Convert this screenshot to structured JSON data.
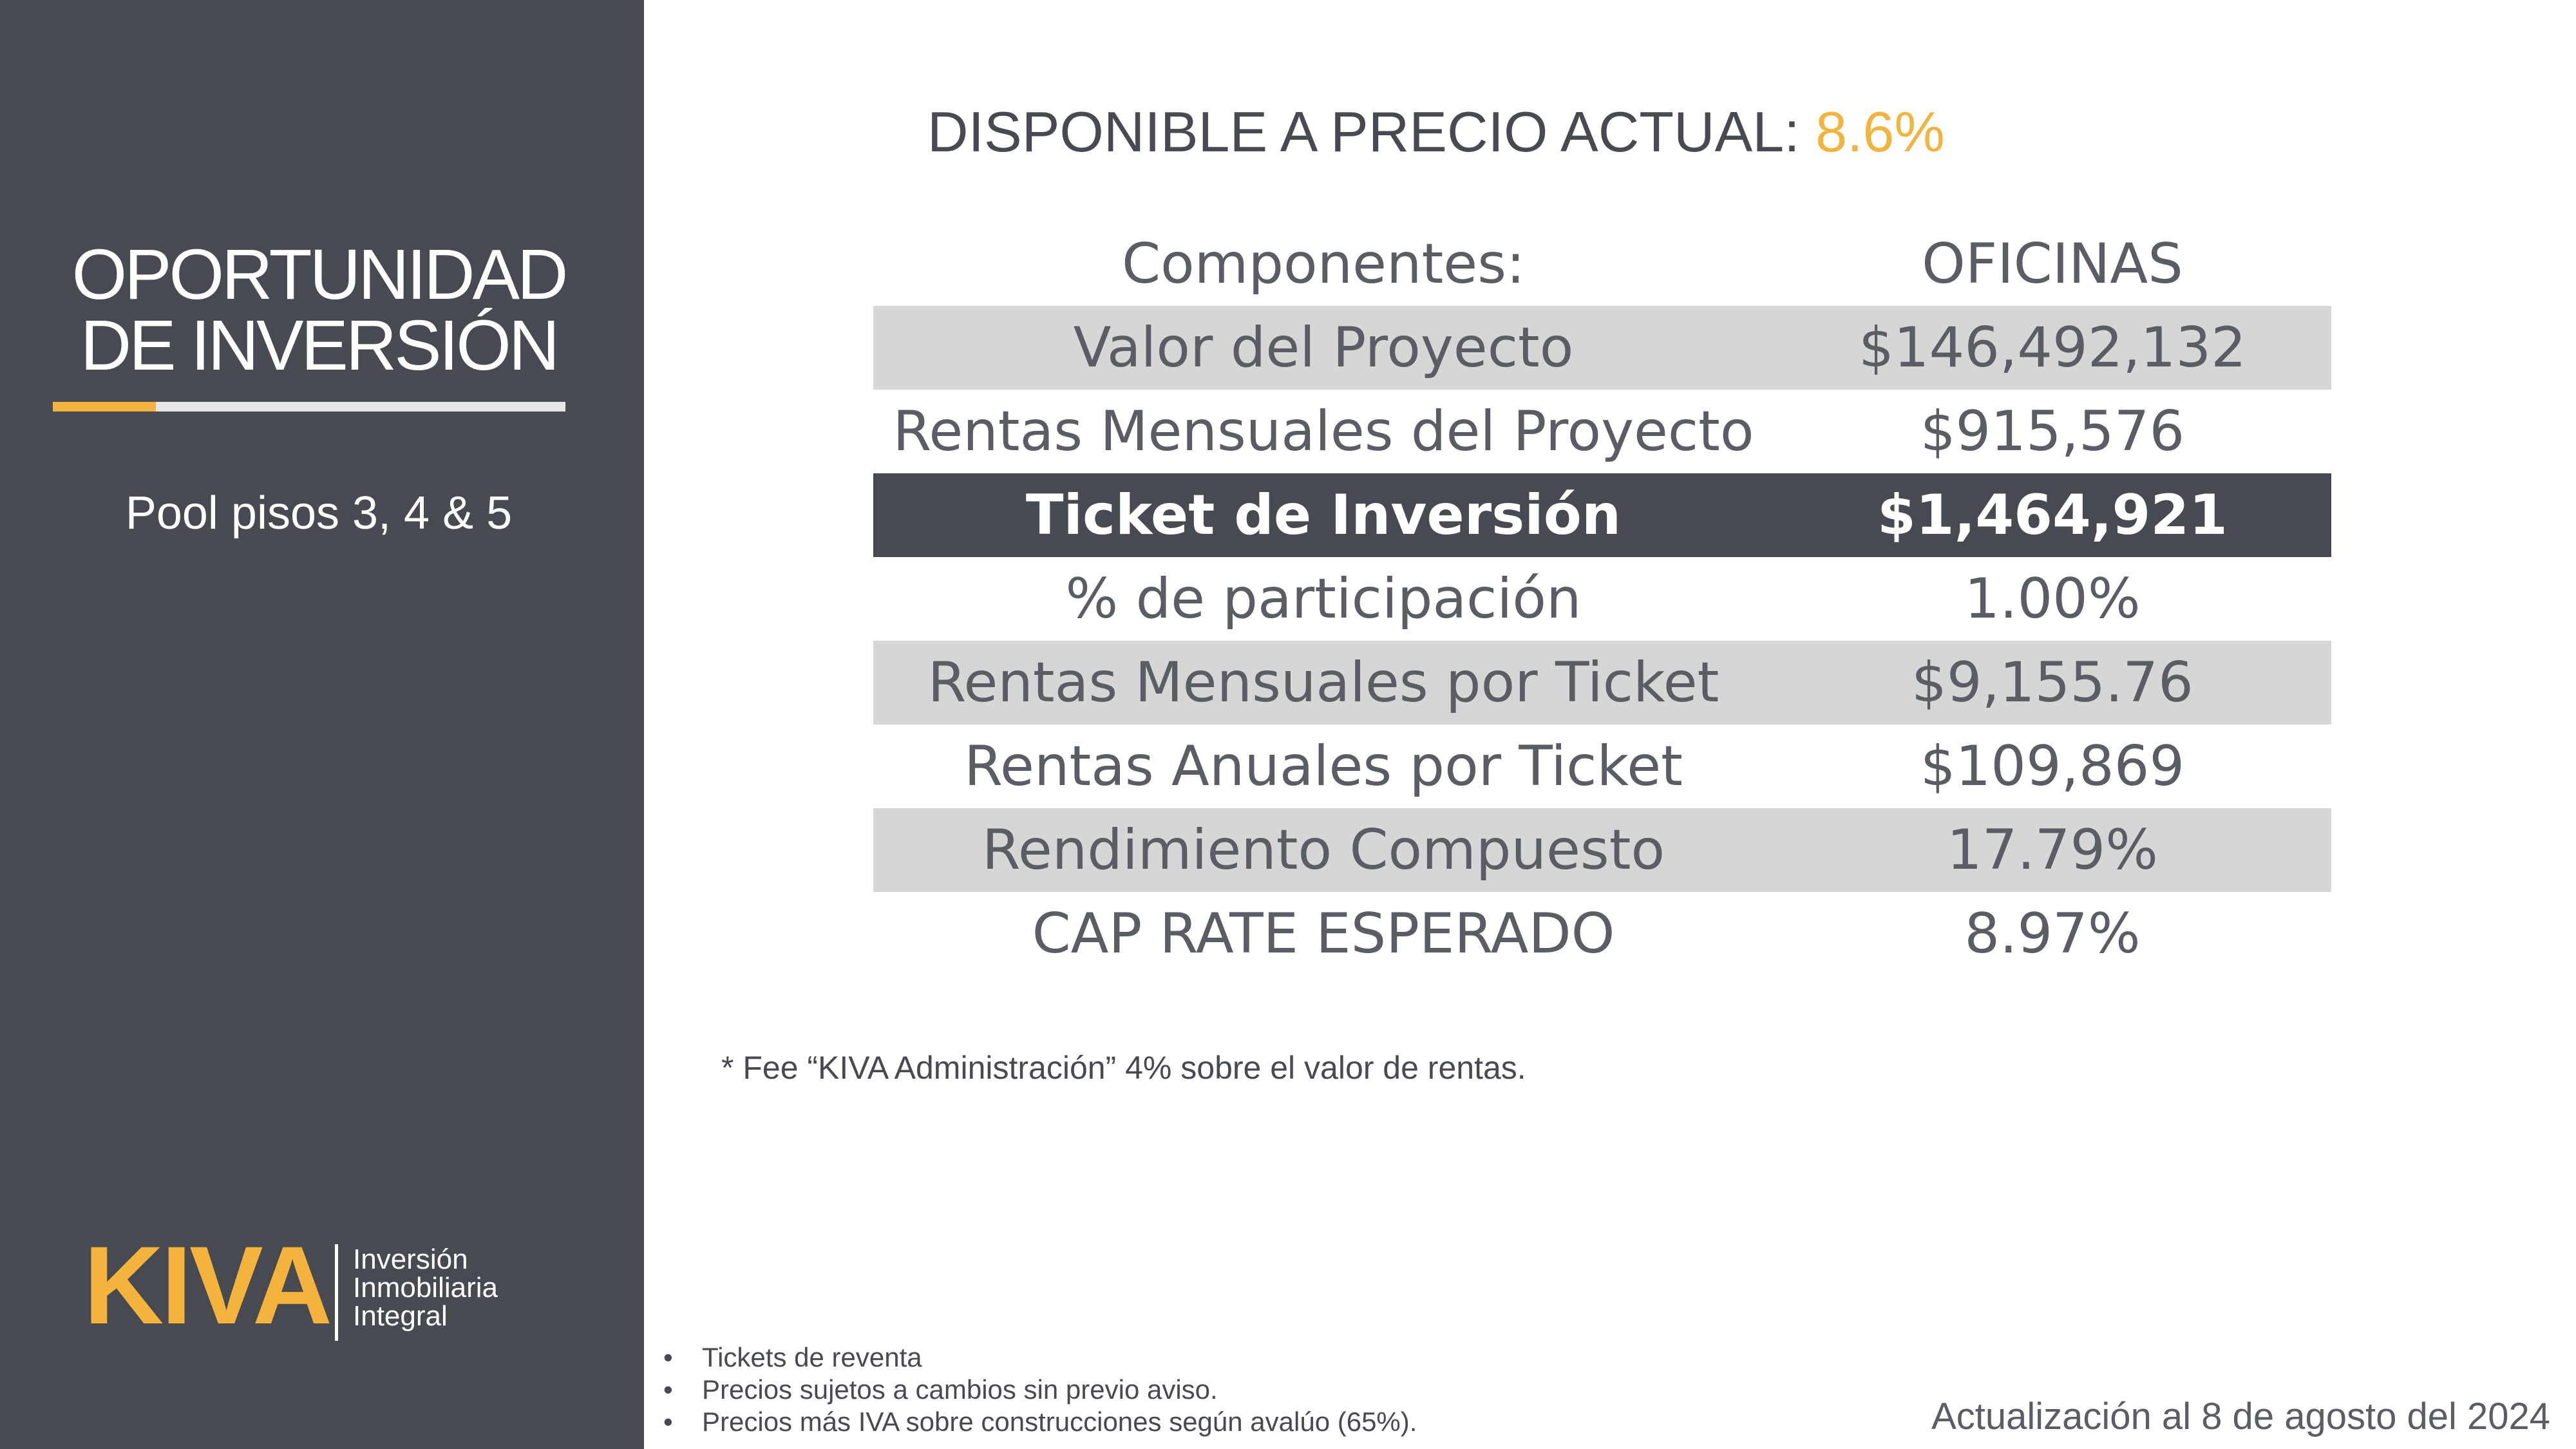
{
  "sidebar": {
    "title_line1": "OPORTUNIDAD",
    "title_line2": "DE INVERSIÓN",
    "subtitle": "Pool pisos 3, 4 & 5",
    "logo": {
      "word": "KIVA",
      "tagline": [
        "Inversión",
        "Inmobiliaria",
        "Integral"
      ]
    }
  },
  "header": {
    "title_prefix": "DISPONIBLE A PRECIO ACTUAL:",
    "title_value": "8.6%"
  },
  "table": {
    "header": {
      "label": "Componentes:",
      "value": "OFICINAS"
    },
    "rows": [
      {
        "label": "Valor del Proyecto",
        "value": "$146,492,132"
      },
      {
        "label": "Rentas Mensuales del Proyecto",
        "value": "$915,576"
      },
      {
        "label": "Ticket de Inversión",
        "value": "$1,464,921"
      },
      {
        "label": "% de participación",
        "value": "1.00%"
      },
      {
        "label": "Rentas Mensuales por Ticket",
        "value": "$9,155.76"
      },
      {
        "label": "Rentas Anuales por Ticket",
        "value": "$109,869"
      },
      {
        "label": "Rendimiento Compuesto",
        "value": "17.79%"
      },
      {
        "label": "CAP RATE ESPERADO",
        "value": "8.97%"
      }
    ]
  },
  "fee_note": "* Fee “KIVA Administración” 4% sobre el valor de rentas.",
  "bullet_marker": "•",
  "bullets": [
    "Tickets de reventa",
    "Precios sujetos a cambios sin previo aviso.",
    "Precios más IVA sobre construcciones según avalúo (65%)."
  ],
  "update_text": "Actualización al 8 de agosto del 2024",
  "colors": {
    "sidebar": "#474a51",
    "accent": "#f3b33d",
    "row_alt": "#d6d6d6",
    "row_highlight": "#474a51"
  }
}
